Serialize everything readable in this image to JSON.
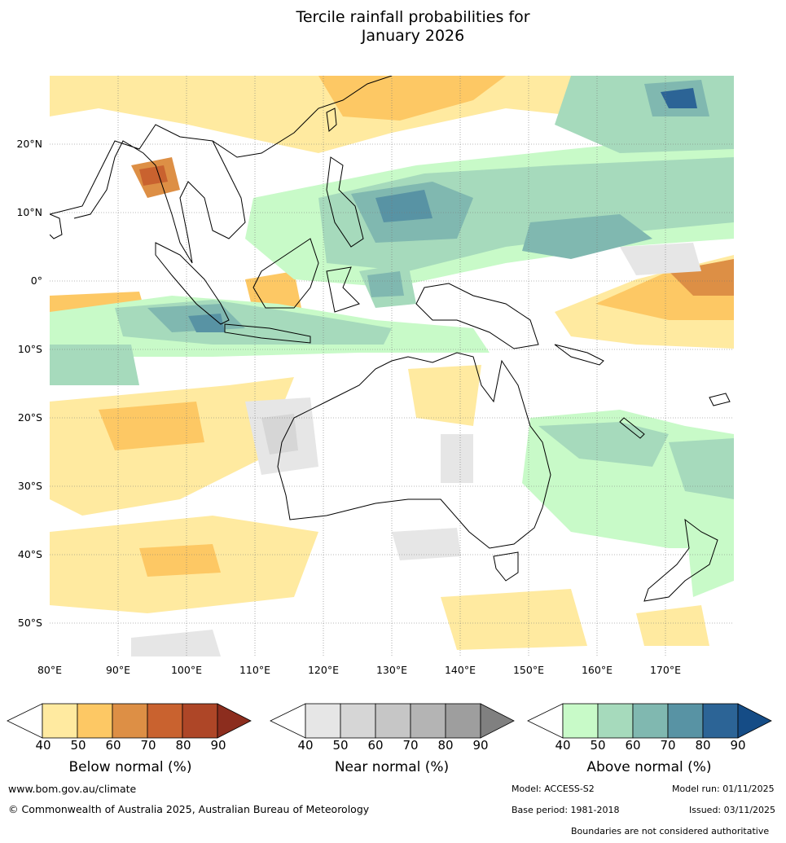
{
  "title_line1": "Tercile rainfall probabilities for",
  "title_line2": "January 2026",
  "lat_labels": [
    "20°N",
    "10°N",
    "0°",
    "10°S",
    "20°S",
    "30°S",
    "40°S",
    "50°S"
  ],
  "lon_labels": [
    "80°E",
    "90°E",
    "100°E",
    "110°E",
    "120°E",
    "130°E",
    "140°E",
    "150°E",
    "160°E",
    "170°E"
  ],
  "colorbars": [
    {
      "title": "Below normal (%)",
      "ticks": [
        "40",
        "50",
        "60",
        "70",
        "80",
        "90"
      ],
      "colors": [
        "#ffeaa0",
        "#fdc864",
        "#dd8f45",
        "#c9622f",
        "#ae4627",
        "#8c2d1e"
      ]
    },
    {
      "title": "Near normal (%)",
      "ticks": [
        "40",
        "50",
        "60",
        "70",
        "80",
        "90"
      ],
      "colors": [
        "#e6e6e6",
        "#d6d6d6",
        "#c6c6c6",
        "#b4b4b4",
        "#9e9e9e",
        "#808080"
      ]
    },
    {
      "title": "Above normal (%)",
      "ticks": [
        "40",
        "50",
        "60",
        "70",
        "80",
        "90"
      ],
      "colors": [
        "#c8fac8",
        "#a6dabc",
        "#80b8b0",
        "#5893a4",
        "#2c6496",
        "#154c86"
      ]
    }
  ],
  "footer": {
    "website": "www.bom.gov.au/climate",
    "copyright": "© Commonwealth of Australia 2025, Australian Bureau of Meteorology",
    "model": "Model: ACCESS-S2",
    "model_run": "Model run: 01/11/2025",
    "base_period": "Base period: 1981-2018",
    "issued": "Issued: 03/11/2025",
    "disclaimer": "Boundaries are not considered authoritative"
  },
  "icons": {
    "map": "tercile-probability-map",
    "land": "coastline-outline"
  }
}
